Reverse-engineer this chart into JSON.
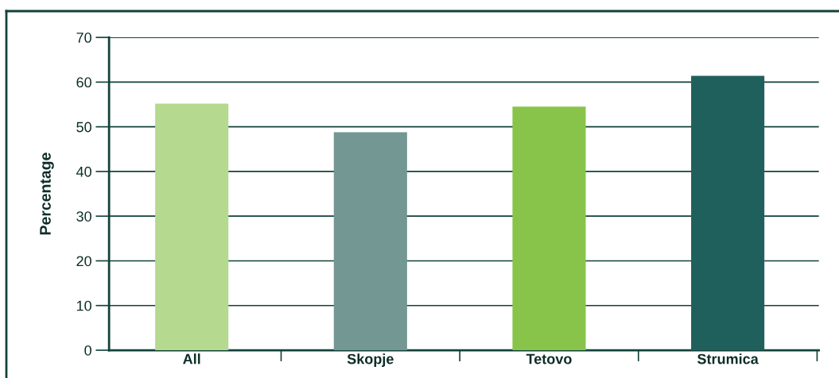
{
  "chart_data": {
    "type": "bar",
    "ylabel": "Percentage",
    "categories": [
      "All",
      "Skopje",
      "Tetovo",
      "Strumica"
    ],
    "values": [
      55.2,
      48.8,
      54.5,
      61.4
    ],
    "colors": [
      "#b5d98f",
      "#739793",
      "#88c44a",
      "#20605c"
    ],
    "ylim": [
      0,
      70
    ],
    "yticks": [
      0,
      10,
      20,
      30,
      40,
      50,
      60,
      70
    ],
    "grid": "y",
    "legend": false
  }
}
